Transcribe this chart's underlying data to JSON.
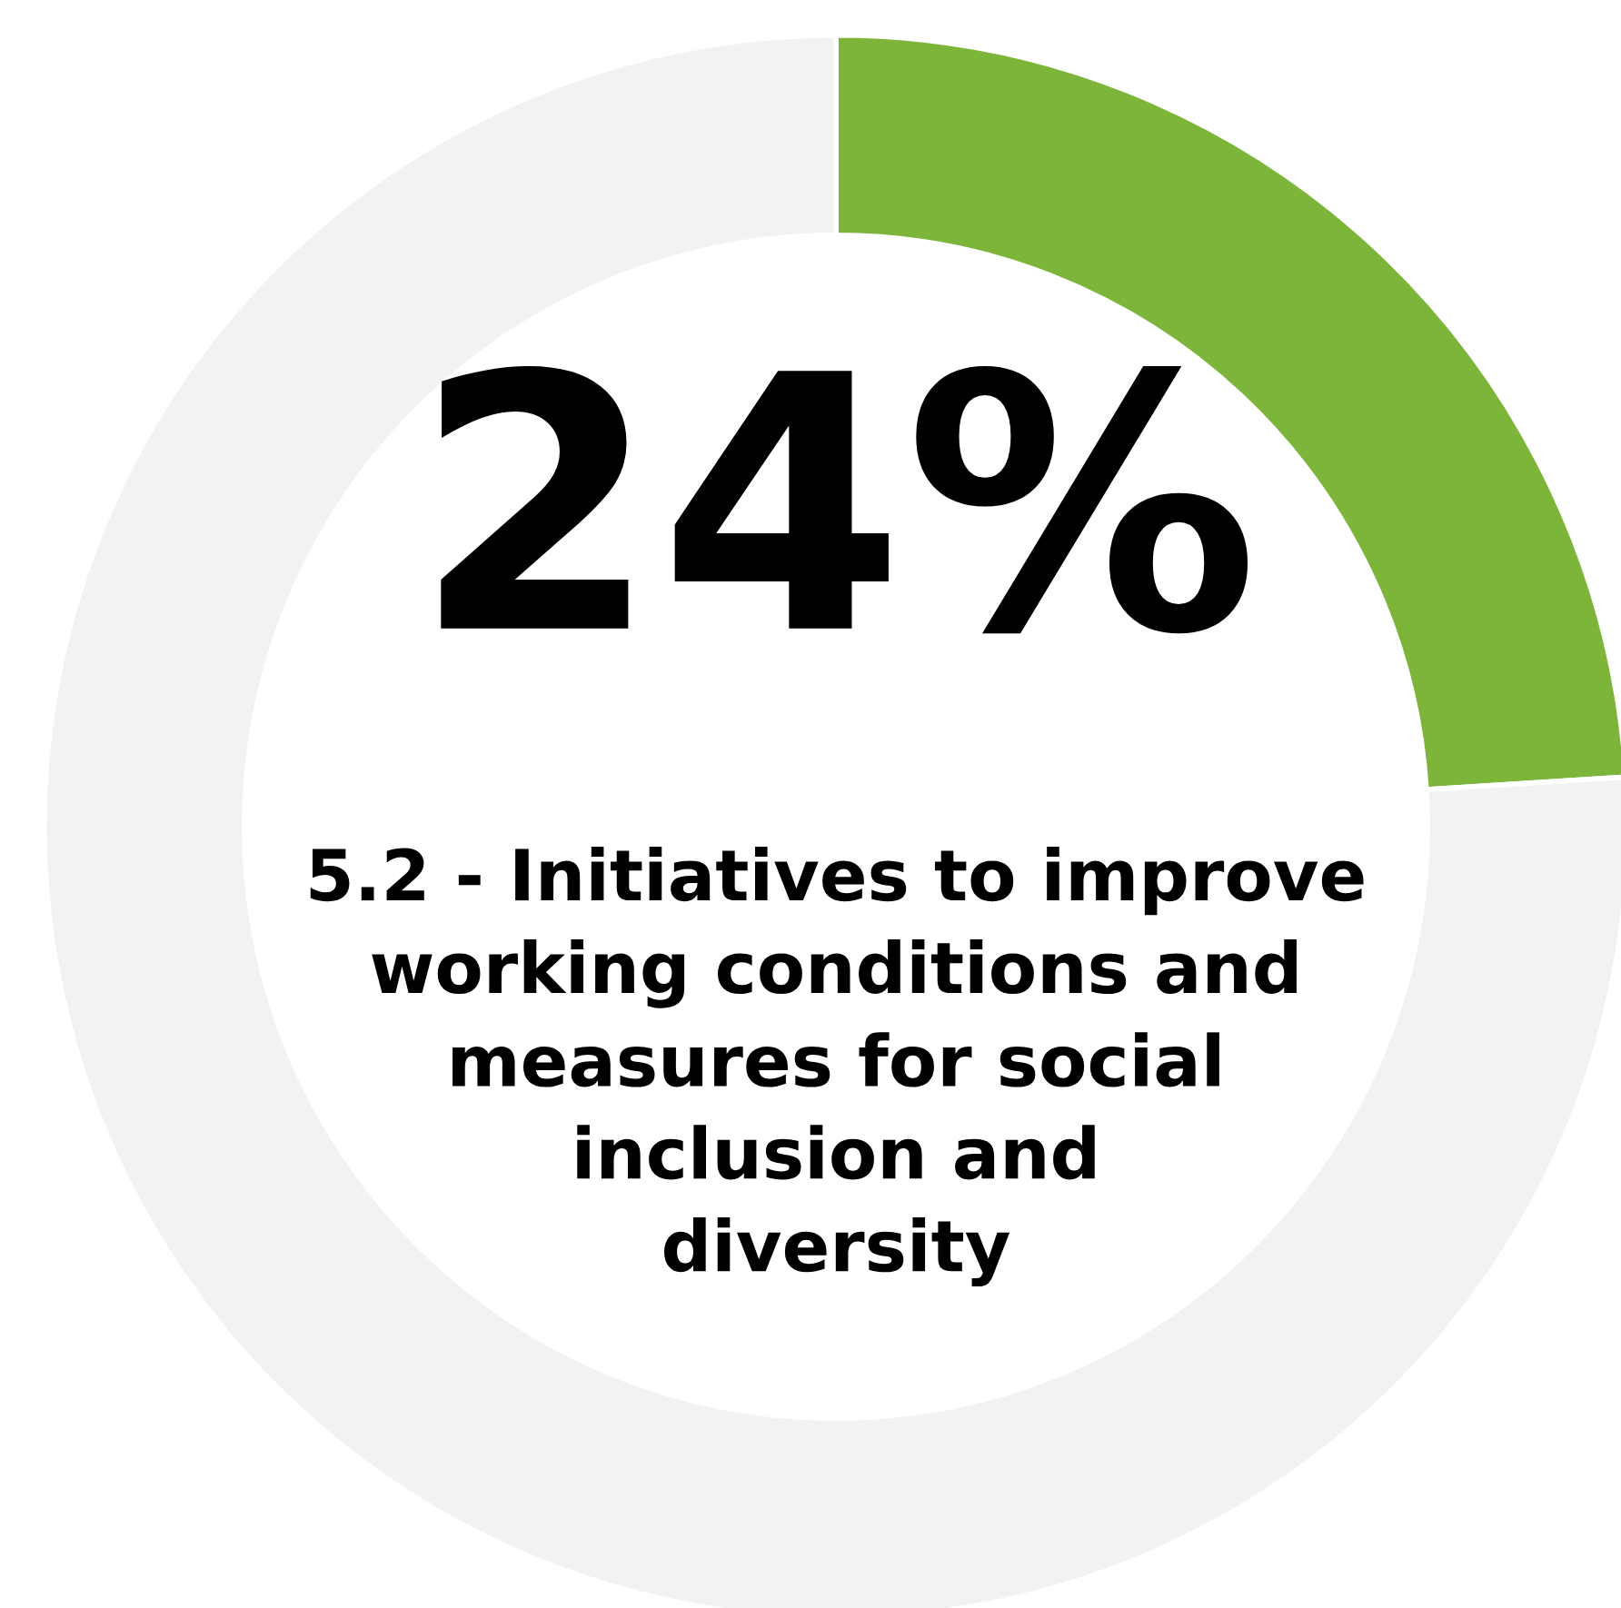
{
  "chart_data": {
    "type": "donut",
    "categories": [
      null,
      null
    ],
    "values": [
      24,
      76
    ],
    "colors": [
      "#7cb53a",
      "#f1f2f2"
    ],
    "value_labels": [
      "24%",
      null
    ],
    "annotations": [
      "5.2 - Initiatives to improve\nworking conditions and\nmeasures for social\ninclusion and\ndiversity"
    ],
    "legend": false
  }
}
